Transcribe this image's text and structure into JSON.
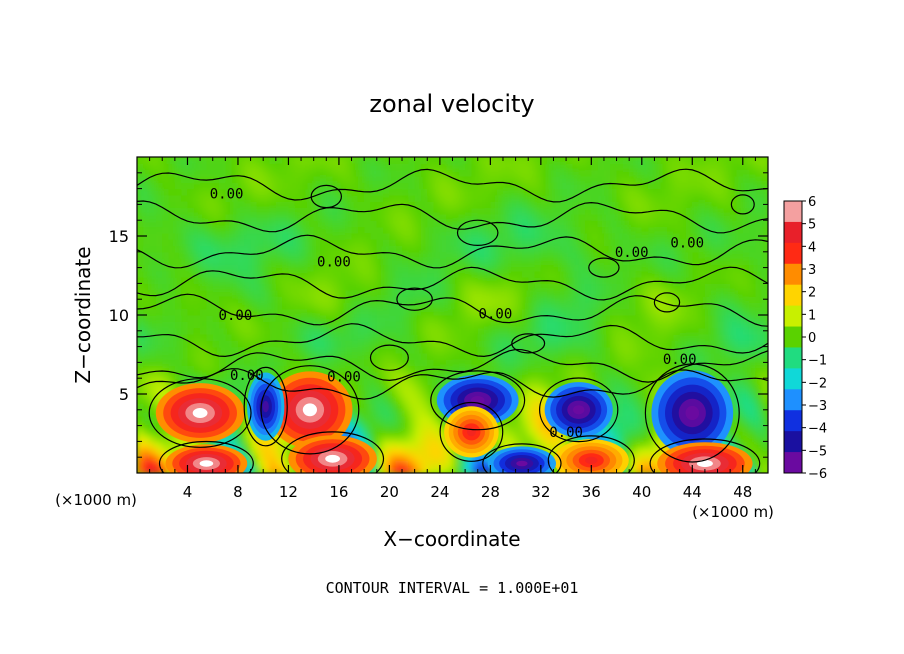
{
  "chart_data": {
    "type": "heatmap",
    "title": "zonal velocity",
    "xlabel": "X−coordinate",
    "ylabel": "Z−coordinate",
    "x_unit_left": "(×1000 m)",
    "x_unit_right": "(×1000 m)",
    "xlim": [
      0,
      50
    ],
    "ylim": [
      0,
      20
    ],
    "x_ticks": [
      4,
      8,
      12,
      16,
      20,
      24,
      28,
      32,
      36,
      40,
      44,
      48
    ],
    "x_tick_labels": [
      "4",
      "8",
      "12",
      "16",
      "20",
      "24",
      "28",
      "32",
      "36",
      "40",
      "44",
      "48"
    ],
    "y_ticks": [
      5,
      10,
      15
    ],
    "y_tick_labels": [
      "5",
      "10",
      "15"
    ],
    "colorbar": {
      "min": -6,
      "max": 6,
      "levels": [
        6,
        5,
        4,
        3,
        2,
        1,
        0,
        -1,
        -2,
        -3,
        -4,
        -5,
        -6
      ],
      "labels": [
        "6",
        "5",
        "4",
        "3",
        "2",
        "1",
        "0",
        "−1",
        "−2",
        "−3",
        "−4",
        "−5",
        "−6"
      ],
      "colors": [
        "#f4a0a0",
        "#e8202a",
        "#ff2a14",
        "#ff8c00",
        "#ffd400",
        "#c8f000",
        "#5ad200",
        "#20dc80",
        "#10d8d8",
        "#1e90ff",
        "#1030e0",
        "#1a10a0",
        "#6a0aa0"
      ]
    },
    "contour_level": 0.0,
    "contour_labels": [
      {
        "text": "0.00",
        "x": 7.1,
        "y": 17.7
      },
      {
        "text": "0.00",
        "x": 15.6,
        "y": 13.4
      },
      {
        "text": "0.00",
        "x": 39.2,
        "y": 14.0
      },
      {
        "text": "0.00",
        "x": 43.6,
        "y": 14.6
      },
      {
        "text": "0.00",
        "x": 7.8,
        "y": 10.0
      },
      {
        "text": "0.00",
        "x": 28.4,
        "y": 10.1
      },
      {
        "text": "0.00",
        "x": 8.7,
        "y": 6.2
      },
      {
        "text": "0.00",
        "x": 16.4,
        "y": 6.1
      },
      {
        "text": "0.00",
        "x": 43.0,
        "y": 7.2
      },
      {
        "text": "0.00",
        "x": 34.0,
        "y": 2.6
      }
    ],
    "near_surface_cells": [
      {
        "x": 5.0,
        "z": 3.8,
        "v": 6.5,
        "sx": 2.6,
        "sz": 1.4
      },
      {
        "x": 13.7,
        "z": 4.0,
        "v": 6.5,
        "sx": 2.5,
        "sz": 1.8
      },
      {
        "x": 5.5,
        "z": 0.6,
        "v": 6.5,
        "sx": 2.4,
        "sz": 0.9
      },
      {
        "x": 15.5,
        "z": 0.9,
        "v": 6.5,
        "sx": 2.6,
        "sz": 1.1
      },
      {
        "x": 10.2,
        "z": 4.2,
        "v": -5.5,
        "sx": 1.1,
        "sz": 1.6
      },
      {
        "x": 27.0,
        "z": 4.6,
        "v": -6.5,
        "sx": 2.4,
        "sz": 1.2
      },
      {
        "x": 35.0,
        "z": 4.0,
        "v": -6.5,
        "sx": 2.0,
        "sz": 1.3
      },
      {
        "x": 44.0,
        "z": 3.8,
        "v": -6.5,
        "sx": 2.4,
        "sz": 2.0
      },
      {
        "x": 45.0,
        "z": 0.6,
        "v": 6.5,
        "sx": 2.8,
        "sz": 1.0
      },
      {
        "x": 36.0,
        "z": 0.8,
        "v": 4.5,
        "sx": 2.2,
        "sz": 1.0
      },
      {
        "x": 26.5,
        "z": 2.6,
        "v": 4.5,
        "sx": 1.6,
        "sz": 1.2
      },
      {
        "x": 30.5,
        "z": 0.6,
        "v": -6.0,
        "sx": 2.0,
        "sz": 0.8
      }
    ]
  },
  "footer": {
    "contour_interval": "CONTOUR INTERVAL = 1.000E+01"
  }
}
